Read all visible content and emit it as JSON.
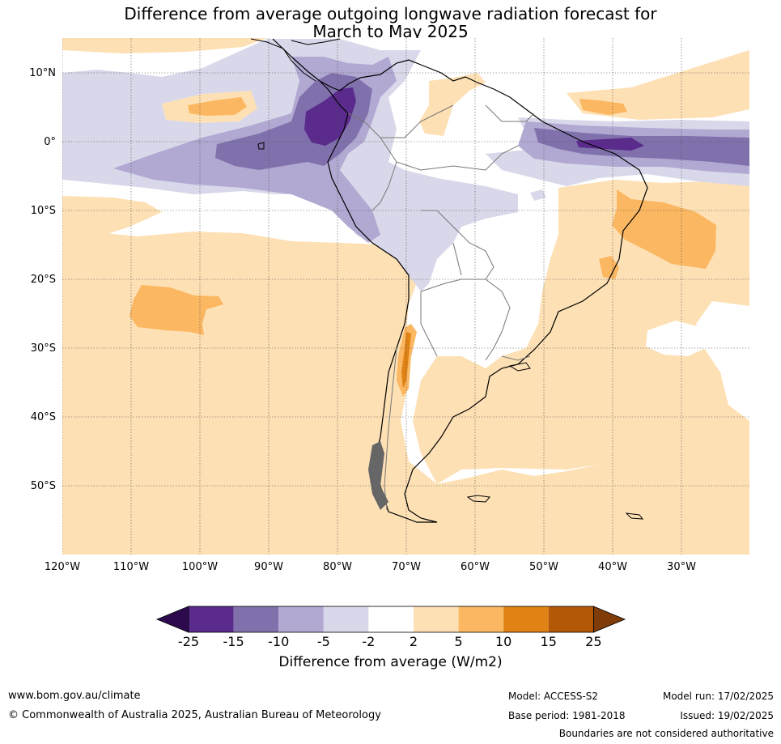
{
  "title_line1": "Difference from average outgoing longwave radiation forecast for",
  "title_line2": "March to May 2025",
  "lat_labels": [
    "10°N",
    "0°",
    "10°S",
    "20°S",
    "30°S",
    "40°S",
    "50°S"
  ],
  "lon_labels": [
    "120°W",
    "110°W",
    "100°W",
    "90°W",
    "80°W",
    "70°W",
    "60°W",
    "50°W",
    "40°W",
    "30°W"
  ],
  "colorbar": {
    "ticks": [
      "-25",
      "-15",
      "-10",
      "-5",
      "-2",
      "2",
      "5",
      "10",
      "15",
      "25"
    ],
    "colors": [
      "#2d0a4e",
      "#5a2a8c",
      "#8071ad",
      "#b1a9d2",
      "#d8d8ea",
      "#ffffff",
      "#fde0b4",
      "#fbb761",
      "#e08214",
      "#b35806",
      "#7f3b08"
    ],
    "label": "Difference from average (W/m2)"
  },
  "footer": {
    "website": "www.bom.gov.au/climate",
    "copyright": "© Commonwealth of Australia 2025, Australian Bureau of Meteorology",
    "model": "Model: ACCESS-S2",
    "base_period": "Base period: 1981-2018",
    "model_run": "Model run: 17/02/2025",
    "issued": "Issued: 19/02/2025",
    "disclaimer": "Boundaries are not considered authoritative"
  }
}
